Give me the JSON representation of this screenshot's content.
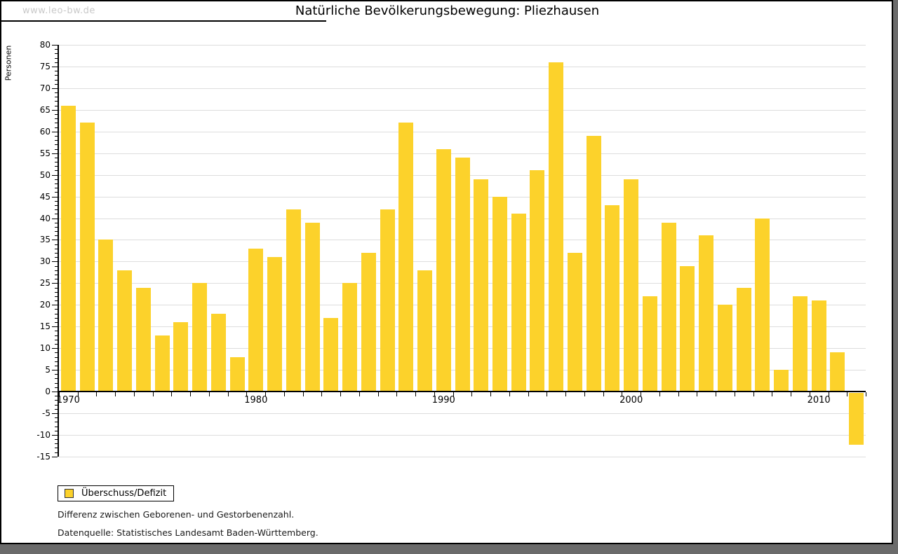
{
  "page": {
    "watermark": "www.leo-bw.de",
    "title": "Natürliche Bevölkerungsbewegung: Pliezhausen",
    "footnote1": "Differenz zwischen Geborenen- und Gestorbenenzahl.",
    "footnote2": "Datenquelle: Statistisches Landesamt Baden-Württemberg."
  },
  "legend": {
    "label": "Überschuss/Defizit"
  },
  "colors": {
    "bar": "#fcd22b",
    "grid": "#dddddd",
    "axis": "#000000",
    "watermark": "#c9c9c9",
    "shadow": "#6b6b6b",
    "legend_swatch_border": "#333333"
  },
  "chart_data": {
    "type": "bar",
    "title": "Natürliche Bevölkerungsbewegung: Pliezhausen",
    "ylabel": "Personen",
    "xlabel": "",
    "categories": [
      1970,
      1971,
      1972,
      1973,
      1974,
      1975,
      1976,
      1977,
      1978,
      1979,
      1980,
      1981,
      1982,
      1983,
      1984,
      1985,
      1986,
      1987,
      1988,
      1989,
      1990,
      1991,
      1992,
      1993,
      1994,
      1995,
      1996,
      1997,
      1998,
      1999,
      2000,
      2001,
      2002,
      2003,
      2004,
      2005,
      2006,
      2007,
      2008,
      2009,
      2010,
      2011,
      2012
    ],
    "series": [
      {
        "name": "Überschuss/Defizit",
        "values": [
          66,
          62,
          35,
          28,
          24,
          13,
          16,
          25,
          18,
          8,
          33,
          31,
          42,
          39,
          17,
          25,
          32,
          42,
          62,
          28,
          56,
          54,
          49,
          45,
          41,
          51,
          76,
          32,
          59,
          43,
          49,
          22,
          39,
          29,
          36,
          20,
          24,
          40,
          5,
          22,
          21,
          9,
          -12
        ]
      }
    ],
    "ylim": [
      -15,
      80
    ],
    "ytick_step": 5,
    "ytick_minor_step": 1,
    "xtick_label_years": [
      1970,
      1980,
      1990,
      2000,
      2010
    ],
    "grid": true,
    "legend_position": "bottom-left"
  }
}
